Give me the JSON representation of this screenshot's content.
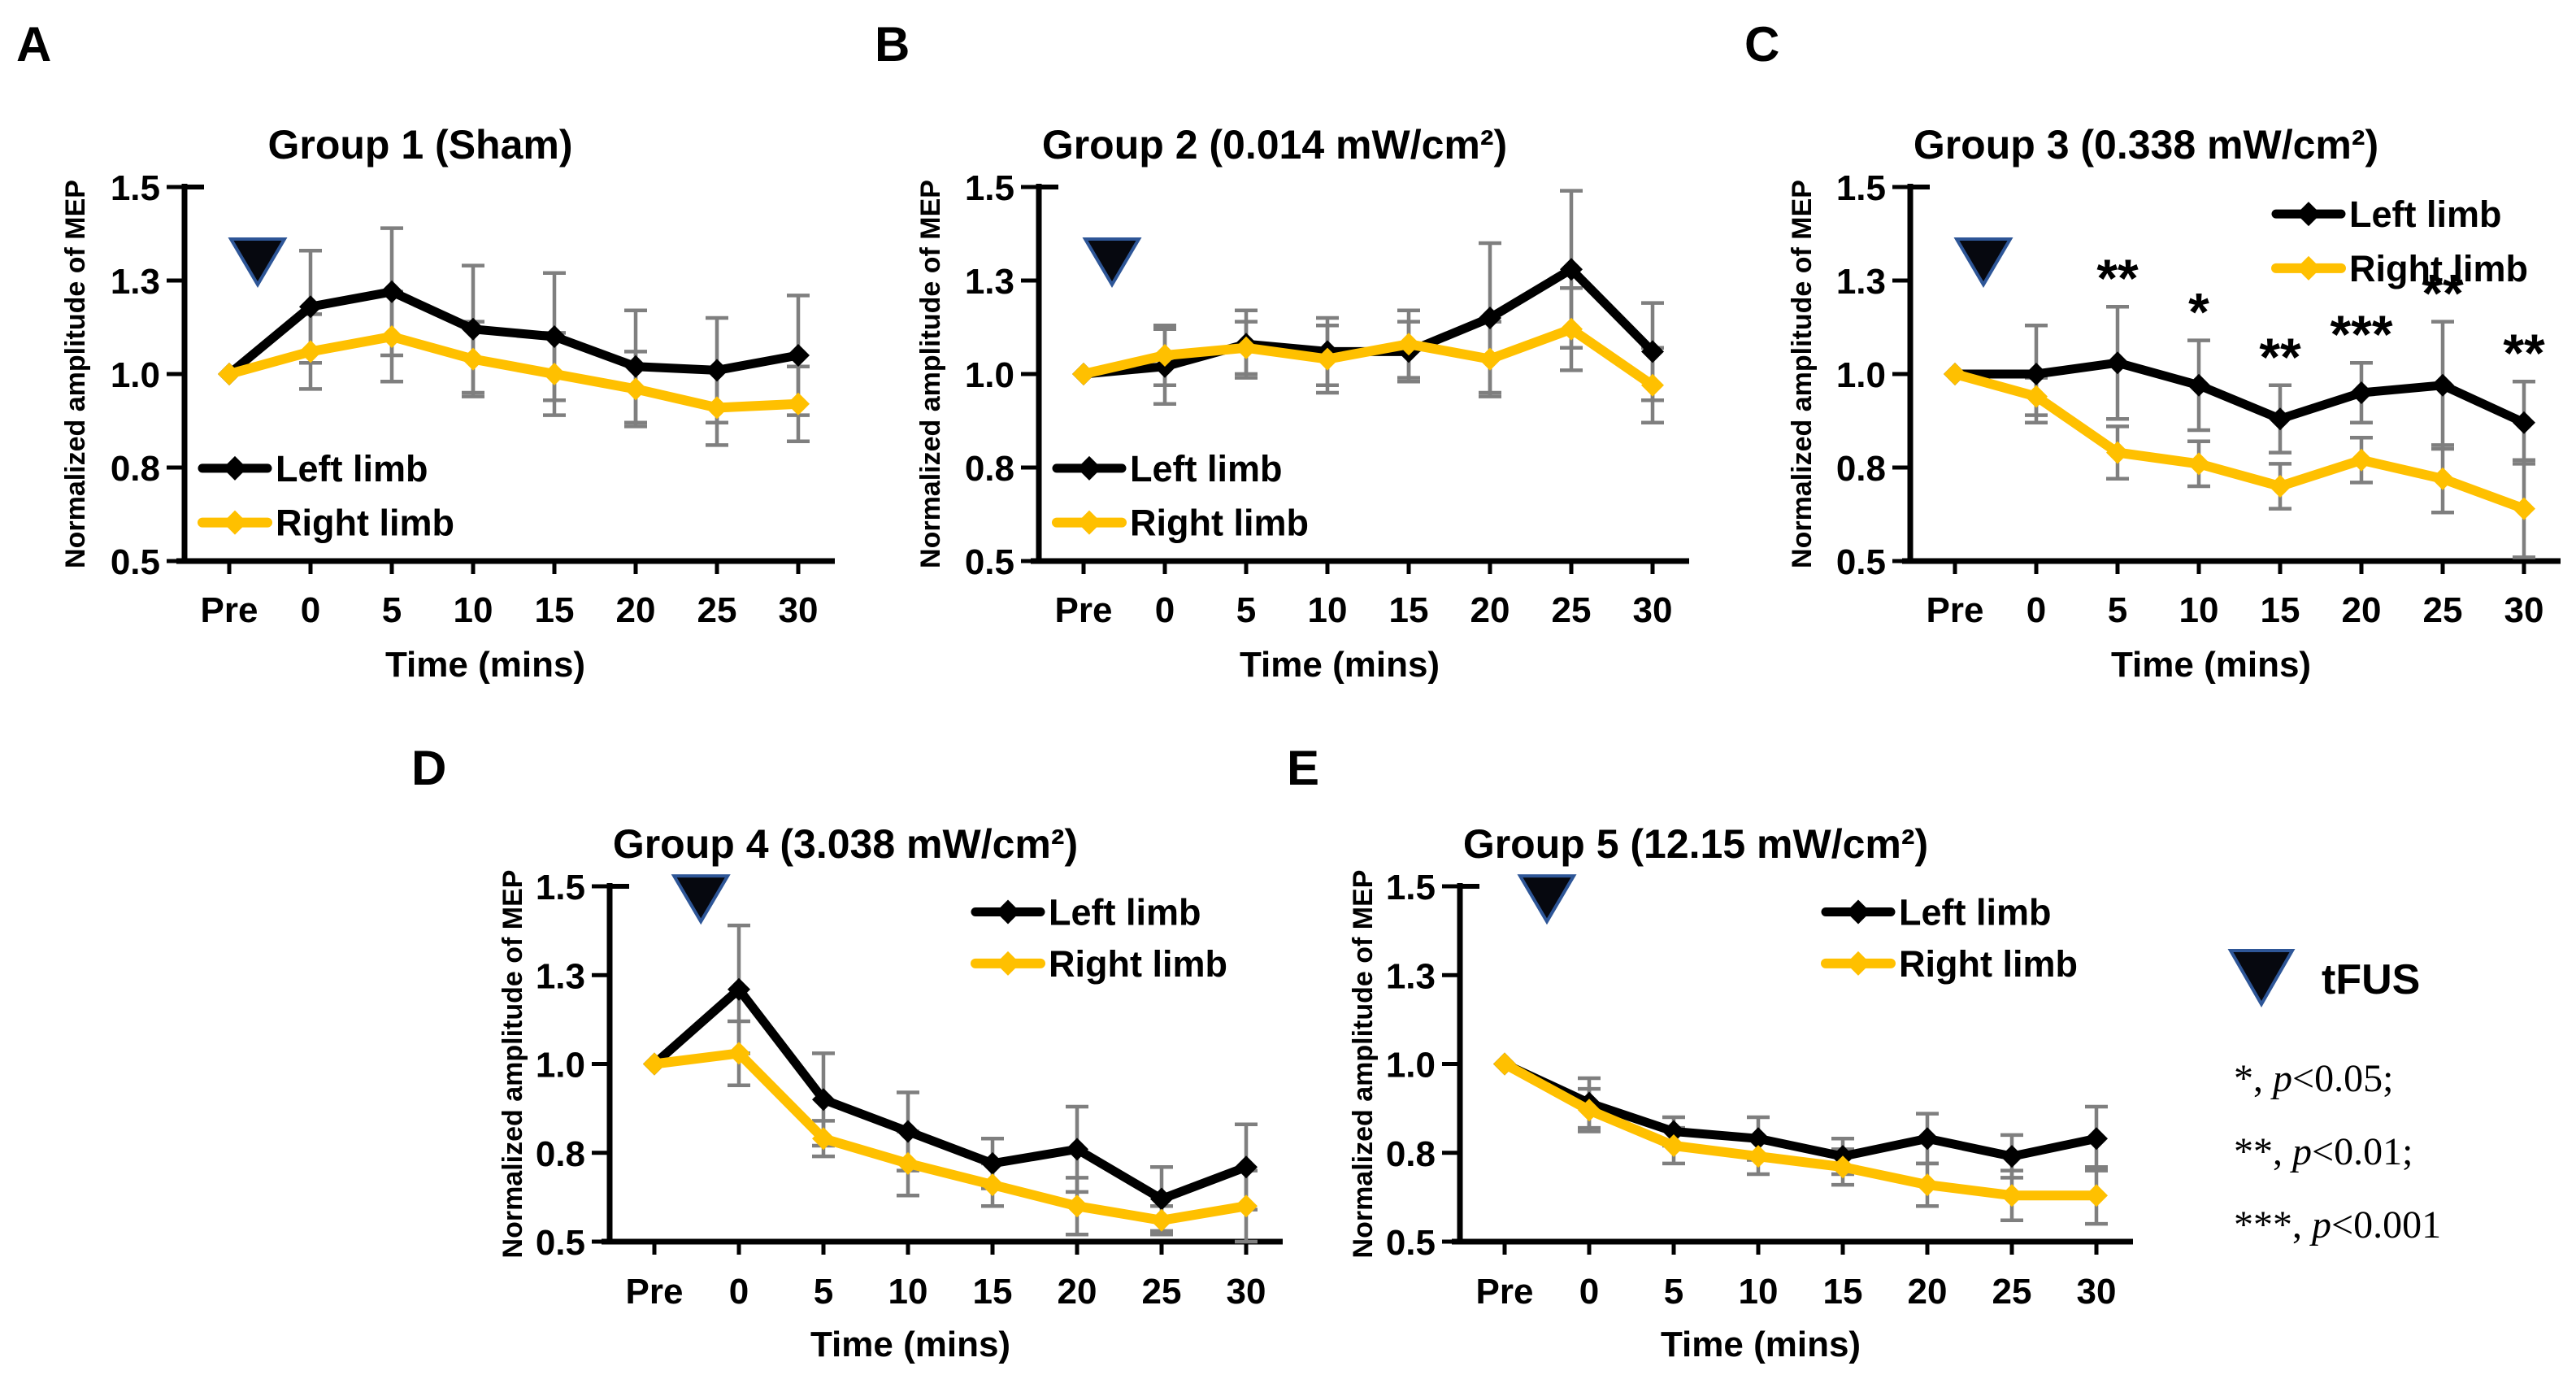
{
  "figure": {
    "background": "#ffffff",
    "colors": {
      "left_limb": "#000000",
      "right_limb": "#FFC000",
      "error_bar": "#7F7F7F",
      "tfus_triangle_fill": "#06080F",
      "tfus_triangle_stroke": "#2E5697",
      "text": "#000000"
    },
    "tfus_label": "tFUS",
    "sig_lines": [
      {
        "prefix": "*, ",
        "p": "p",
        "suffix": "<0.05;"
      },
      {
        "prefix": "**, ",
        "p": "p",
        "suffix": "<0.01;"
      },
      {
        "prefix": "***, ",
        "p": "p",
        "suffix": "<0.001"
      }
    ]
  },
  "chart_data": [
    {
      "type": "line",
      "panel_letter": "A",
      "title": "Group 1 (Sham)",
      "xlabel": "Time (mins)",
      "ylabel": "Normalized amplitude of MEP",
      "categories": [
        "Pre",
        "0",
        "5",
        "10",
        "15",
        "20",
        "25",
        "30"
      ],
      "ylim": [
        0.5,
        1.5
      ],
      "ytick_values": [
        1.5,
        1.25,
        1.0,
        0.75,
        0.5
      ],
      "ytick_labels": [
        "1.5",
        "1.3",
        "1.0",
        "0.8",
        "0.5"
      ],
      "legend_position": "bottom-left",
      "tfus_marker": {
        "x_frac_between_pre_and_0": 0.35,
        "y": 1.3
      },
      "significance": [
        "",
        "",
        "",
        "",
        "",
        "",
        "",
        ""
      ],
      "series": [
        {
          "name": "Left limb",
          "color": "#000000",
          "values": [
            1.0,
            1.18,
            1.22,
            1.12,
            1.1,
            1.02,
            1.01,
            1.05
          ],
          "errors": [
            0,
            0.15,
            0.17,
            0.17,
            0.17,
            0.15,
            0.14,
            0.16
          ]
        },
        {
          "name": "Right limb",
          "color": "#FFC000",
          "values": [
            1.0,
            1.06,
            1.1,
            1.04,
            1.0,
            0.96,
            0.91,
            0.92
          ],
          "errors": [
            0,
            0.1,
            0.12,
            0.1,
            0.11,
            0.1,
            0.1,
            0.1
          ]
        }
      ]
    },
    {
      "type": "line",
      "panel_letter": "B",
      "title": "Group 2 (0.014 mW/cm²)",
      "xlabel": "Time (mins)",
      "ylabel": "Normalized amplitude of MEP",
      "categories": [
        "Pre",
        "0",
        "5",
        "10",
        "15",
        "20",
        "25",
        "30"
      ],
      "ylim": [
        0.5,
        1.5
      ],
      "ytick_values": [
        1.5,
        1.25,
        1.0,
        0.75,
        0.5
      ],
      "ytick_labels": [
        "1.5",
        "1.3",
        "1.0",
        "0.8",
        "0.5"
      ],
      "legend_position": "bottom-left",
      "tfus_marker": {
        "x_frac_between_pre_and_0": 0.35,
        "y": 1.3
      },
      "significance": [
        "",
        "",
        "",
        "",
        "",
        "",
        "",
        ""
      ],
      "series": [
        {
          "name": "Left limb",
          "color": "#000000",
          "values": [
            1.0,
            1.02,
            1.08,
            1.06,
            1.06,
            1.15,
            1.28,
            1.06
          ],
          "errors": [
            0,
            0.1,
            0.09,
            0.09,
            0.08,
            0.2,
            0.21,
            0.13
          ]
        },
        {
          "name": "Right limb",
          "color": "#FFC000",
          "values": [
            1.0,
            1.05,
            1.07,
            1.04,
            1.08,
            1.04,
            1.12,
            0.97
          ],
          "errors": [
            0,
            0.08,
            0.07,
            0.09,
            0.09,
            0.1,
            0.11,
            0.1
          ]
        }
      ]
    },
    {
      "type": "line",
      "panel_letter": "C",
      "title": "Group 3 (0.338 mW/cm²)",
      "xlabel": "Time (mins)",
      "ylabel": "Normalized amplitude of MEP",
      "categories": [
        "Pre",
        "0",
        "5",
        "10",
        "15",
        "20",
        "25",
        "30"
      ],
      "ylim": [
        0.5,
        1.5
      ],
      "ytick_values": [
        1.5,
        1.25,
        1.0,
        0.75,
        0.5
      ],
      "ytick_labels": [
        "1.5",
        "1.3",
        "1.0",
        "0.8",
        "0.5"
      ],
      "legend_position": "top-right",
      "tfus_marker": {
        "x_frac_between_pre_and_0": 0.35,
        "y": 1.3
      },
      "significance": [
        "",
        "",
        "**",
        "*",
        "**",
        "***",
        "**",
        "**"
      ],
      "series": [
        {
          "name": "Left limb",
          "color": "#000000",
          "values": [
            1.0,
            1.0,
            1.03,
            0.97,
            0.88,
            0.95,
            0.97,
            0.87
          ],
          "errors": [
            0,
            0.13,
            0.15,
            0.12,
            0.09,
            0.08,
            0.17,
            0.11
          ]
        },
        {
          "name": "Right limb",
          "color": "#FFC000",
          "values": [
            1.0,
            0.94,
            0.79,
            0.76,
            0.7,
            0.77,
            0.72,
            0.64
          ],
          "errors": [
            0,
            0.05,
            0.07,
            0.06,
            0.06,
            0.06,
            0.09,
            0.13
          ]
        }
      ]
    },
    {
      "type": "line",
      "panel_letter": "D",
      "title": "Group 4 (3.038 mW/cm²)",
      "xlabel": "Time (mins)",
      "ylabel": "Normalized amplitude of MEP",
      "categories": [
        "Pre",
        "0",
        "5",
        "10",
        "15",
        "20",
        "25",
        "30"
      ],
      "ylim": [
        0.5,
        1.5
      ],
      "ytick_values": [
        1.5,
        1.25,
        1.0,
        0.75,
        0.5
      ],
      "ytick_labels": [
        "1.5",
        "1.3",
        "1.0",
        "0.8",
        "0.5"
      ],
      "legend_position": "top-right",
      "tfus_marker": {
        "x_frac_between_pre_and_0": 0.55,
        "y": 1.465
      },
      "significance": [
        "",
        "",
        "",
        "",
        "",
        "",
        "",
        ""
      ],
      "series": [
        {
          "name": "Left limb",
          "color": "#000000",
          "values": [
            1.0,
            1.21,
            0.9,
            0.81,
            0.72,
            0.76,
            0.62,
            0.71
          ],
          "errors": [
            0,
            0.18,
            0.13,
            0.11,
            0.07,
            0.12,
            0.09,
            0.12
          ]
        },
        {
          "name": "Right limb",
          "color": "#FFC000",
          "values": [
            1.0,
            1.03,
            0.79,
            0.72,
            0.66,
            0.6,
            0.56,
            0.6
          ],
          "errors": [
            0,
            0.09,
            0.05,
            0.09,
            0.06,
            0.08,
            0.04,
            0.1
          ]
        }
      ]
    },
    {
      "type": "line",
      "panel_letter": "E",
      "title": "Group 5 (12.15 mW/cm²)",
      "xlabel": "Time (mins)",
      "ylabel": "Normalized amplitude of MEP",
      "categories": [
        "Pre",
        "0",
        "5",
        "10",
        "15",
        "20",
        "25",
        "30"
      ],
      "ylim": [
        0.5,
        1.5
      ],
      "ytick_values": [
        1.5,
        1.25,
        1.0,
        0.75,
        0.5
      ],
      "ytick_labels": [
        "1.5",
        "1.3",
        "1.0",
        "0.8",
        "0.5"
      ],
      "legend_position": "top-right",
      "tfus_marker": {
        "x_frac_between_pre_and_0": 0.5,
        "y": 1.465
      },
      "significance": [
        "",
        "",
        "",
        "",
        "",
        "",
        "",
        ""
      ],
      "series": [
        {
          "name": "Left limb",
          "color": "#000000",
          "values": [
            1.0,
            0.89,
            0.81,
            0.79,
            0.74,
            0.79,
            0.74,
            0.79
          ],
          "errors": [
            0,
            0.07,
            0.04,
            0.06,
            0.05,
            0.07,
            0.06,
            0.09
          ]
        },
        {
          "name": "Right limb",
          "color": "#FFC000",
          "values": [
            1.0,
            0.87,
            0.77,
            0.74,
            0.71,
            0.66,
            0.63,
            0.63
          ],
          "errors": [
            0,
            0.06,
            0.05,
            0.05,
            0.05,
            0.06,
            0.07,
            0.08
          ]
        }
      ]
    }
  ]
}
